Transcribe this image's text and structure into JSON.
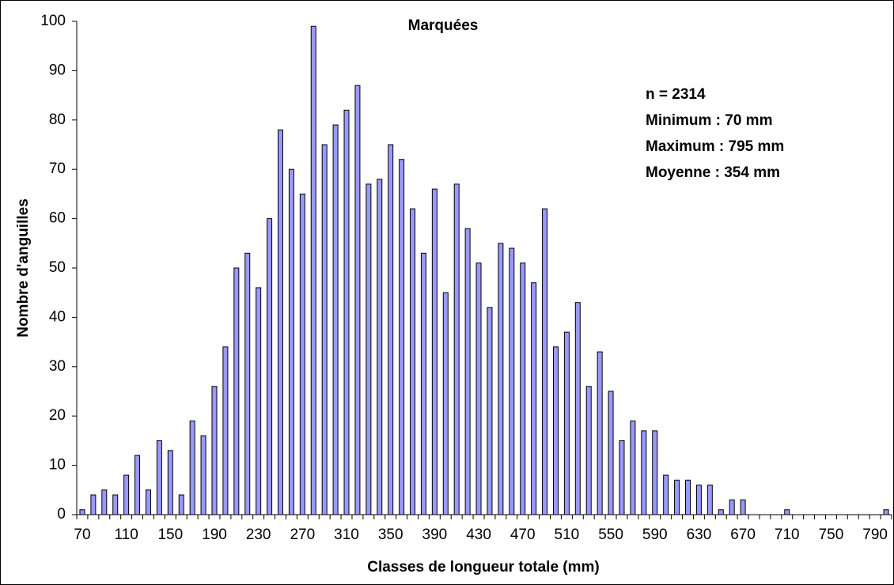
{
  "chart_data": {
    "type": "bar",
    "title": "Marquées",
    "annotations": [
      "n = 2314",
      "Minimum : 70 mm",
      "Maximum : 795 mm",
      "Moyenne : 354 mm"
    ],
    "x_label": "Classes de longueur totale (mm)",
    "y_label": "Nombre d'anguilles",
    "categories": [
      "70",
      null,
      null,
      null,
      "110",
      null,
      null,
      null,
      "150",
      null,
      null,
      null,
      "190",
      null,
      null,
      null,
      "230",
      null,
      null,
      null,
      "270",
      null,
      null,
      null,
      "310",
      null,
      null,
      null,
      "350",
      null,
      null,
      null,
      "390",
      null,
      null,
      null,
      "430",
      null,
      null,
      null,
      "470",
      null,
      null,
      null,
      "510",
      null,
      null,
      null,
      "550",
      null,
      null,
      null,
      "590",
      null,
      null,
      null,
      "630",
      null,
      null,
      null,
      "670",
      null,
      null,
      null,
      "710",
      null,
      null,
      null,
      "750",
      null,
      null,
      null,
      "790",
      null
    ],
    "values": [
      1,
      4,
      5,
      4,
      8,
      12,
      5,
      15,
      13,
      4,
      19,
      16,
      26,
      34,
      50,
      53,
      46,
      60,
      78,
      70,
      65,
      99,
      75,
      79,
      82,
      87,
      67,
      68,
      75,
      72,
      62,
      53,
      66,
      45,
      67,
      58,
      51,
      42,
      55,
      54,
      51,
      47,
      62,
      34,
      37,
      43,
      26,
      33,
      25,
      15,
      19,
      17,
      17,
      8,
      7,
      7,
      6,
      6,
      1,
      3,
      3,
      0,
      0,
      0,
      1,
      0,
      0,
      0,
      0,
      0,
      0,
      0,
      0,
      1
    ],
    "color": "#9999ff",
    "ylim": [
      0,
      100
    ],
    "yticks": [
      0,
      10,
      20,
      30,
      40,
      50,
      60,
      70,
      80,
      90,
      100
    ],
    "grid": false
  }
}
